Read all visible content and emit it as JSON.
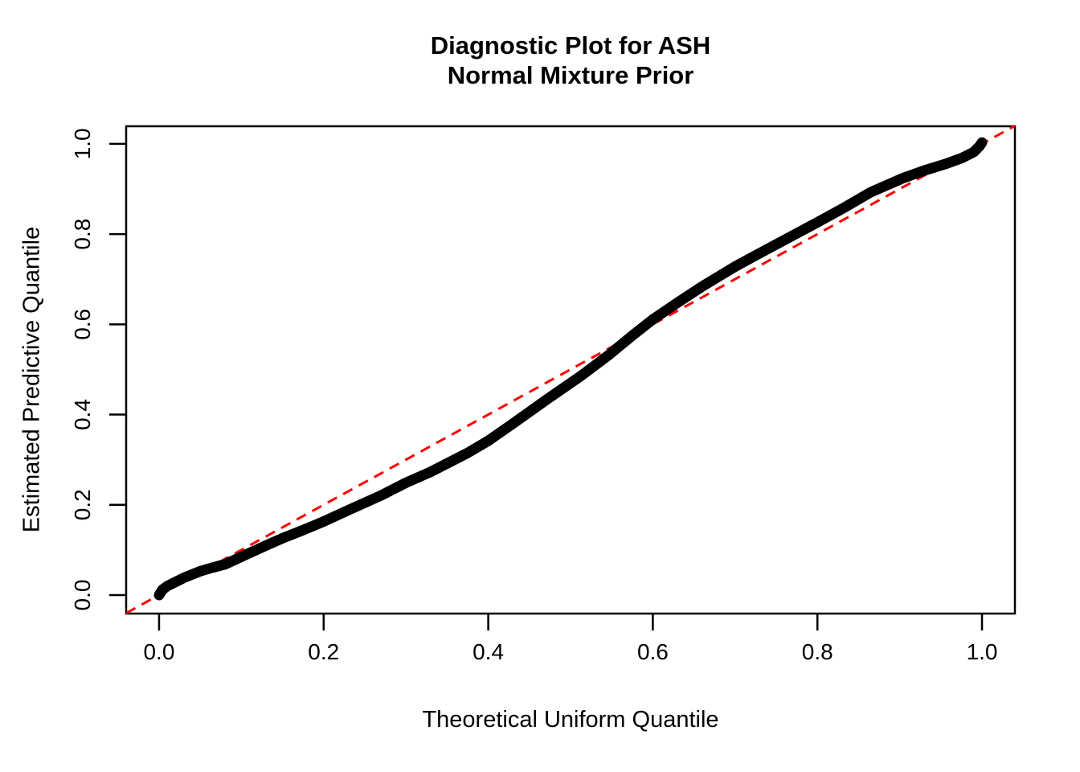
{
  "title": {
    "line1": "Diagnostic Plot for ASH",
    "line2": "Normal Mixture Prior"
  },
  "chart_data": {
    "type": "line",
    "title": "Diagnostic Plot for ASH\nNormal Mixture Prior",
    "xlabel": "Theoretical Uniform Quantile",
    "ylabel": "Estimated Predictive Quantile",
    "xlim": [
      -0.04,
      1.04
    ],
    "ylim": [
      -0.041,
      1.039
    ],
    "grid": false,
    "legend_position": "none",
    "x_ticks": {
      "values": [
        0.0,
        0.2,
        0.4,
        0.6,
        0.8,
        1.0
      ],
      "labels": [
        "0.0",
        "0.2",
        "0.4",
        "0.6",
        "0.8",
        "1.0"
      ]
    },
    "y_ticks": {
      "values": [
        0.0,
        0.2,
        0.4,
        0.6,
        0.8,
        1.0
      ],
      "labels": [
        "0.0",
        "0.2",
        "0.4",
        "0.6",
        "0.8",
        "1.0"
      ]
    },
    "series": [
      {
        "name": "estimated-predictive-quantile-curve",
        "description": "thick black curve of overplotted sample points",
        "color": "#000000",
        "style": "solid",
        "stroke_width": 13,
        "points": [
          [
            0.0,
            0.0
          ],
          [
            0.004,
            0.012
          ],
          [
            0.01,
            0.02
          ],
          [
            0.02,
            0.029
          ],
          [
            0.031,
            0.039
          ],
          [
            0.05,
            0.053
          ],
          [
            0.065,
            0.061
          ],
          [
            0.08,
            0.068
          ],
          [
            0.1,
            0.085
          ],
          [
            0.13,
            0.11
          ],
          [
            0.15,
            0.126
          ],
          [
            0.175,
            0.144
          ],
          [
            0.2,
            0.163
          ],
          [
            0.237,
            0.194
          ],
          [
            0.27,
            0.221
          ],
          [
            0.3,
            0.249
          ],
          [
            0.33,
            0.273
          ],
          [
            0.375,
            0.315
          ],
          [
            0.4,
            0.342
          ],
          [
            0.43,
            0.38
          ],
          [
            0.47,
            0.432
          ],
          [
            0.512,
            0.485
          ],
          [
            0.545,
            0.53
          ],
          [
            0.575,
            0.575
          ],
          [
            0.6,
            0.611
          ],
          [
            0.63,
            0.648
          ],
          [
            0.66,
            0.684
          ],
          [
            0.7,
            0.728
          ],
          [
            0.727,
            0.755
          ],
          [
            0.76,
            0.787
          ],
          [
            0.8,
            0.826
          ],
          [
            0.83,
            0.856
          ],
          [
            0.865,
            0.893
          ],
          [
            0.904,
            0.924
          ],
          [
            0.93,
            0.941
          ],
          [
            0.955,
            0.955
          ],
          [
            0.975,
            0.968
          ],
          [
            0.99,
            0.982
          ],
          [
            0.997,
            0.995
          ],
          [
            1.0,
            1.003
          ]
        ]
      },
      {
        "name": "identity-reference-line",
        "description": "red dashed y = x diagonal",
        "color": "#FF0000",
        "style": "dashed",
        "stroke_width": 3,
        "points": [
          [
            -0.04,
            -0.04
          ],
          [
            1.04,
            1.04
          ]
        ]
      }
    ]
  }
}
